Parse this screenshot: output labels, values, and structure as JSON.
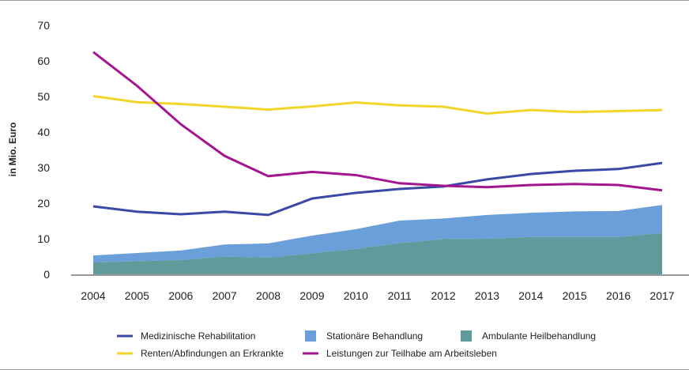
{
  "chart_data": {
    "type": "line",
    "ylabel": "in Mio. Euro",
    "ylim": [
      0,
      70
    ],
    "yticks": [
      0,
      10,
      20,
      30,
      40,
      50,
      60,
      70
    ],
    "categories": [
      "2004",
      "2005",
      "2006",
      "2007",
      "2008",
      "2009",
      "2010",
      "2011",
      "2012",
      "2013",
      "2014",
      "2015",
      "2016",
      "2017"
    ],
    "areas": [
      {
        "name": "Ambulante Heilbehandlung",
        "color": "#5f9b9a",
        "values": [
          3.3,
          3.7,
          4.0,
          5.0,
          4.7,
          5.9,
          7.1,
          8.8,
          9.9,
          10.0,
          10.5,
          10.5,
          10.5,
          11.6
        ]
      },
      {
        "name": "Stationäre Behandlung",
        "color": "#6b9fd9",
        "values": [
          2.0,
          2.3,
          2.7,
          3.4,
          4.0,
          5.0,
          5.6,
          6.3,
          5.8,
          6.7,
          6.8,
          7.2,
          7.3,
          7.9
        ]
      }
    ],
    "series": [
      {
        "name": "Medizinische Rehabilitation",
        "color": "#3a48a8",
        "values": [
          19.1,
          17.6,
          16.9,
          17.6,
          16.7,
          21.3,
          22.9,
          24.0,
          24.7,
          26.7,
          28.2,
          29.1,
          29.6,
          31.3
        ]
      },
      {
        "name": "Renten/Abfindungen an Erkrankte",
        "color": "#f2d52a",
        "values": [
          50.1,
          48.4,
          47.9,
          47.1,
          46.3,
          47.2,
          48.3,
          47.5,
          47.1,
          45.2,
          46.2,
          45.6,
          45.9,
          46.2
        ]
      },
      {
        "name": "Leistungen zur Teilhabe am Arbeitsleben",
        "color": "#a3168f",
        "values": [
          62.5,
          53.0,
          42.2,
          33.3,
          27.6,
          28.8,
          27.9,
          25.6,
          24.9,
          24.5,
          25.1,
          25.4,
          25.1,
          23.6
        ]
      }
    ],
    "legend_placement": "bottom",
    "grid": false
  }
}
